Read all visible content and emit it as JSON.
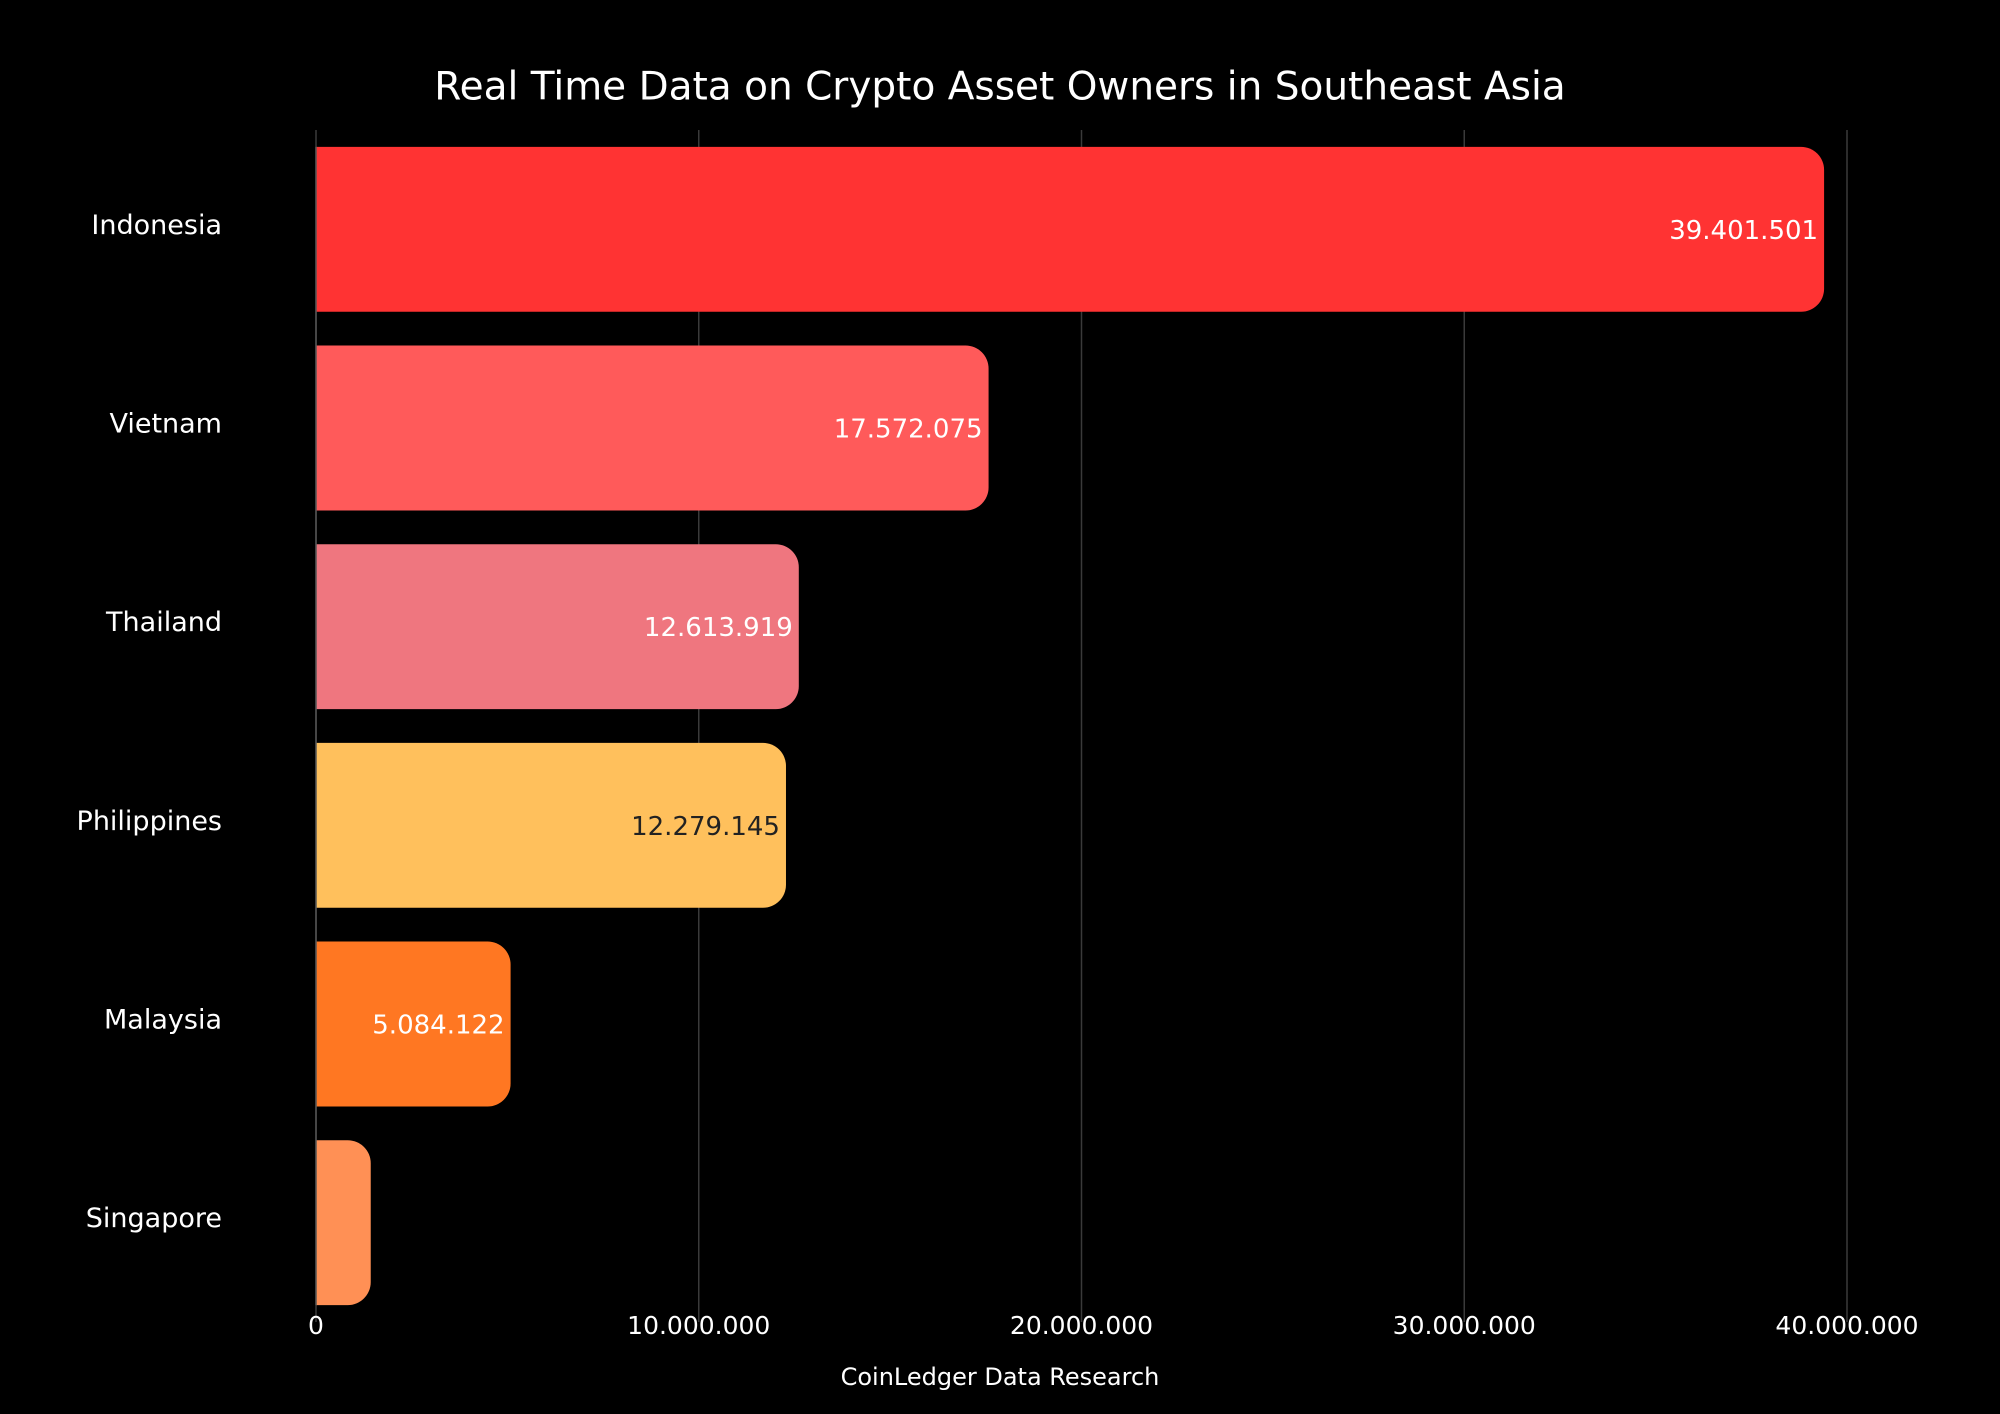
{
  "chart_data": {
    "type": "hbar",
    "title": "Real Time Data on Crypto Asset Owners in Southeast Asia",
    "x_label": "CoinLedger Data Research",
    "categories": [
      "Indonesia",
      "Vietnam",
      "Thailand",
      "Philippines",
      "Malaysia",
      "Singapore"
    ],
    "values": [
      39401501,
      17572075,
      12613919,
      12279145,
      5084122,
      1430000
    ],
    "value_labels": [
      "39.401.501",
      "17.572.075",
      "12.613.919",
      "12.279.145",
      "5.084.122",
      null
    ],
    "colors": [
      "#ff3333",
      "#ff5a5a",
      "#ef767f",
      "#ffc05c",
      "#ff7722",
      "#ff9055"
    ],
    "xlim": [
      0,
      40000000
    ],
    "xticks": [
      0,
      {
        "value": 10000000,
        "label": "10.000.000"
      },
      {
        "value": 20000000,
        "label": "20.000.000"
      },
      {
        "value": 30000000,
        "label": "30.000.000"
      },
      {
        "value": 40000000,
        "label": "40.000.000"
      }
    ],
    "grid": true
  }
}
